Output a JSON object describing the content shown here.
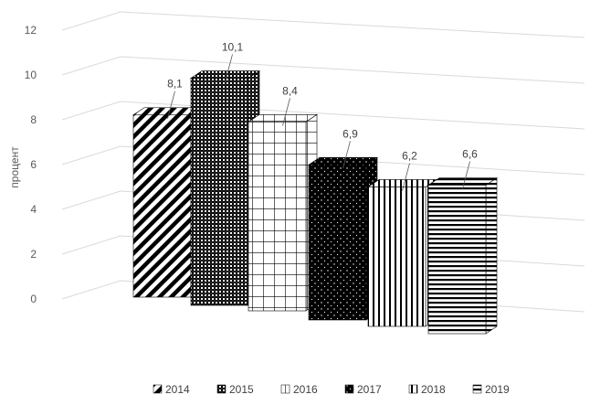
{
  "chart_data": {
    "type": "bar",
    "ylabel": "процент",
    "ylim": [
      0,
      12
    ],
    "yticks": [
      0,
      2,
      4,
      6,
      8,
      10,
      12
    ],
    "grid": true,
    "legend_position": "bottom",
    "series": [
      {
        "name": "2014",
        "value": 8.1,
        "label": "8,1",
        "pattern": "diagonal-stripes"
      },
      {
        "name": "2015",
        "value": 10.1,
        "label": "10,1",
        "pattern": "fine-checker"
      },
      {
        "name": "2016",
        "value": 8.4,
        "label": "8,4",
        "pattern": "grid"
      },
      {
        "name": "2017",
        "value": 6.9,
        "label": "6,9",
        "pattern": "black-dotted"
      },
      {
        "name": "2018",
        "value": 6.2,
        "label": "6,2",
        "pattern": "vertical-stripes"
      },
      {
        "name": "2019",
        "value": 6.6,
        "label": "6,6",
        "pattern": "horizontal-stripes"
      }
    ]
  }
}
